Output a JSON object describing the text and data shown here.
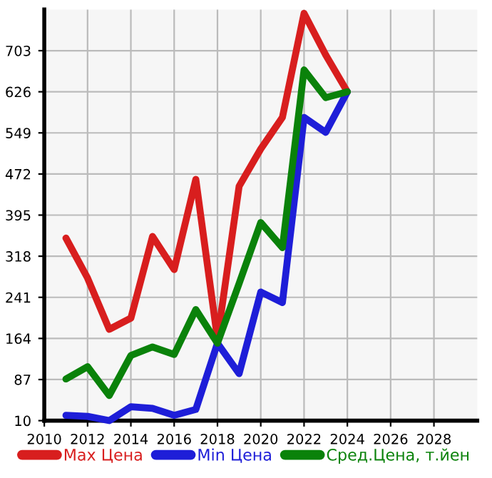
{
  "chart_data": {
    "type": "line",
    "x": [
      2011,
      2012,
      2013,
      2014,
      2015,
      2016,
      2017,
      2018,
      2019,
      2020,
      2021,
      2022,
      2023,
      2024
    ],
    "series": [
      {
        "name": "Max Цена",
        "color": "#d81e1e",
        "values": [
          352,
          277,
          181,
          202,
          355,
          293,
          462,
          163,
          449,
          519,
          578,
          773,
          695,
          626
        ]
      },
      {
        "name": "Min Цена",
        "color": "#1e1ed8",
        "values": [
          20,
          18,
          10,
          36,
          33,
          20,
          31,
          155,
          98,
          251,
          231,
          578,
          550,
          626
        ]
      },
      {
        "name": "Сред.Цена, т.йен",
        "color": "#0a820a",
        "values": [
          88,
          111,
          57,
          132,
          148,
          134,
          218,
          155,
          267,
          381,
          334,
          667,
          615,
          626
        ]
      }
    ],
    "xlim": [
      2010,
      2030
    ],
    "xticks": [
      2010,
      2012,
      2014,
      2016,
      2018,
      2020,
      2022,
      2024,
      2026,
      2028
    ],
    "ylim": [
      10,
      780
    ],
    "yticks": [
      10,
      87,
      164,
      241,
      318,
      395,
      472,
      549,
      626,
      703
    ],
    "grid": true,
    "legend": "bottom",
    "marker": "none",
    "line_style": "solid"
  }
}
